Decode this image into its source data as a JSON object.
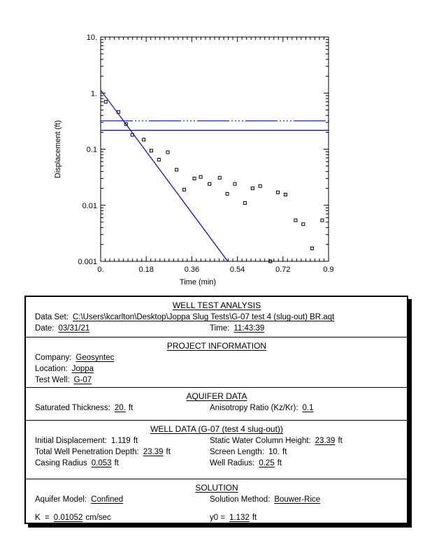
{
  "colors": {
    "line_blue": "#0000cc",
    "marker_black": "#000000",
    "axis_black": "#000000"
  },
  "chart_data": {
    "type": "scatter",
    "title": "",
    "xlabel": "Time (min)",
    "ylabel": "Displacement (ft)",
    "xlim": [
      0,
      0.9
    ],
    "ylim": [
      0.001,
      10
    ],
    "y_scale": "log",
    "grid": false,
    "x_tick_values": [
      0,
      0.18,
      0.36,
      0.54,
      0.72,
      0.9
    ],
    "x_tick_labels": [
      "0.",
      "0.18",
      "0.36",
      "0.54",
      "0.72",
      "0.9"
    ],
    "y_tick_values": [
      10,
      1,
      0.1,
      0.01,
      0.001
    ],
    "y_tick_labels": [
      "10.",
      "1.",
      "0.1",
      "0.01",
      "0.001"
    ],
    "series": [
      {
        "name": "observed-displacement",
        "type": "scatter",
        "marker": "open-square",
        "color": "#000000",
        "points": [
          [
            0.02,
            0.7
          ],
          [
            0.07,
            0.46
          ],
          [
            0.1,
            0.28
          ],
          [
            0.125,
            0.18
          ],
          [
            0.17,
            0.148
          ],
          [
            0.2,
            0.094
          ],
          [
            0.23,
            0.065
          ],
          [
            0.265,
            0.088
          ],
          [
            0.3,
            0.043
          ],
          [
            0.33,
            0.019
          ],
          [
            0.37,
            0.03
          ],
          [
            0.395,
            0.032
          ],
          [
            0.43,
            0.024
          ],
          [
            0.47,
            0.031
          ],
          [
            0.5,
            0.016
          ],
          [
            0.53,
            0.024
          ],
          [
            0.57,
            0.011
          ],
          [
            0.6,
            0.02
          ],
          [
            0.63,
            0.022
          ],
          [
            0.67,
            0.001
          ],
          [
            0.7,
            0.017
          ],
          [
            0.73,
            0.0155
          ],
          [
            0.77,
            0.0054
          ],
          [
            0.8,
            0.0046
          ],
          [
            0.835,
            0.0017
          ],
          [
            0.875,
            0.0054
          ]
        ]
      },
      {
        "name": "bouwer-rice-fit-line",
        "type": "line",
        "color": "#0000cc",
        "points": [
          [
            0,
            1.132
          ],
          [
            0.502,
            0.001
          ]
        ]
      },
      {
        "name": "reference-line-dashdot",
        "type": "hline",
        "color": "#0000cc",
        "y": 0.32,
        "dash": "dashdotdot"
      },
      {
        "name": "reference-line-solid",
        "type": "hline",
        "color": "#0000cc",
        "y": 0.217,
        "dash": "solid"
      }
    ]
  },
  "panel": {
    "header": {
      "title": "WELL TEST ANALYSIS",
      "data_set_label": "Data Set:",
      "data_set_value": "C:\\Users\\kcarlton\\Desktop\\Joppa Slug Tests\\G-07 test 4 (slug-out) BR.aqt",
      "date_label": "Date:",
      "date_value": "03/31/21",
      "time_label": "Time:",
      "time_value": "11:43:39"
    },
    "project": {
      "title": "PROJECT INFORMATION",
      "company_label": "Company:",
      "company_value": "Geosyntec",
      "location_label": "Location:",
      "location_value": "Joppa",
      "well_label": "Test Well:",
      "well_value": "G-07"
    },
    "aquifer": {
      "title": "AQUIFER DATA",
      "sat_label": "Saturated Thickness:",
      "sat_value": "20.",
      "sat_unit": "ft",
      "aniso_label": "Anisotropy Ratio (Kz/Kr):",
      "aniso_value": "0.1"
    },
    "well": {
      "title": "WELL DATA (G-07 (test 4 slug-out))",
      "init_label": "Initial Displacement:",
      "init_value": "1.119",
      "init_unit": "ft",
      "pen_label": "Total Well Penetration Depth:",
      "pen_value": "23.39",
      "pen_unit": "ft",
      "casing_label": "Casing Radius",
      "casing_value": "0.053",
      "casing_unit": "ft",
      "static_label": "Static Water Column Height:",
      "static_value": "23.39",
      "static_unit": "ft",
      "screen_label": "Screen Length:",
      "screen_value": "10.",
      "screen_unit": "ft",
      "wellr_label": "Well Radius:",
      "wellr_value": "0.25",
      "wellr_unit": "ft"
    },
    "solution": {
      "title": "SOLUTION",
      "model_label": "Aquifer Model:",
      "model_value": "Confined",
      "method_label": "Solution Method:",
      "method_value": "Bouwer-Rice",
      "k_label": "K  =",
      "k_value": "0.01052",
      "k_unit": "cm/sec",
      "y0_label": "y0 =",
      "y0_value": "1.132",
      "y0_unit": "ft"
    }
  }
}
